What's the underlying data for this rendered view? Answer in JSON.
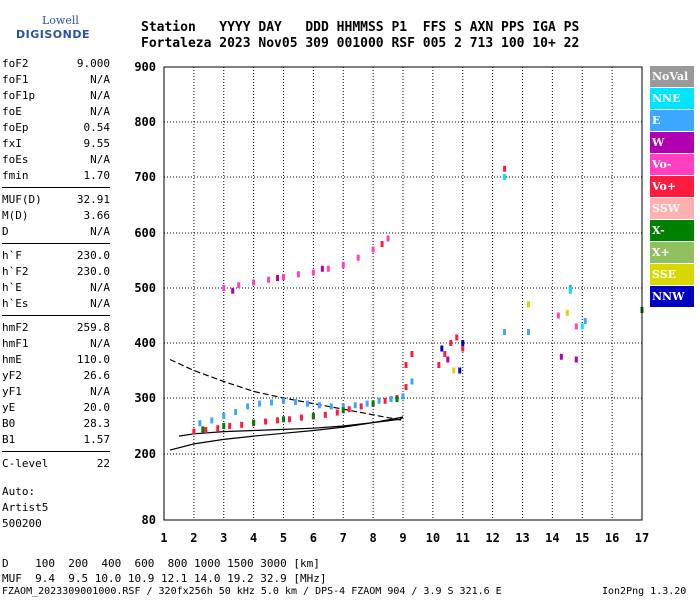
{
  "logo": {
    "line1": "Lowell",
    "line2": "DIGISONDE"
  },
  "header": {
    "line1": "Station   YYYY DAY   DDD HHMMSS P1  FFS S AXN PPS IGA PS",
    "line2": "Fortaleza 2023 Nov05 309 001000 RSF 005 2 713 100 10+ 22"
  },
  "params": [
    [
      {
        "k": "foF2",
        "v": "9.000"
      },
      {
        "k": "foF1",
        "v": "N/A"
      },
      {
        "k": "foF1p",
        "v": "N/A"
      },
      {
        "k": "foE",
        "v": "N/A"
      },
      {
        "k": "foEp",
        "v": "0.54"
      },
      {
        "k": "fxI",
        "v": "9.55"
      },
      {
        "k": "foEs",
        "v": "N/A"
      },
      {
        "k": "fmin",
        "v": "1.70"
      }
    ],
    [
      {
        "k": "MUF(D)",
        "v": "32.91"
      },
      {
        "k": "M(D)",
        "v": "3.66"
      },
      {
        "k": "D",
        "v": "N/A"
      }
    ],
    [
      {
        "k": "h`F",
        "v": "230.0"
      },
      {
        "k": "h`F2",
        "v": "230.0"
      },
      {
        "k": "h`E",
        "v": "N/A"
      },
      {
        "k": "h`Es",
        "v": "N/A"
      }
    ],
    [
      {
        "k": "hmF2",
        "v": "259.8"
      },
      {
        "k": "hmF1",
        "v": "N/A"
      },
      {
        "k": "hmE",
        "v": "110.0"
      },
      {
        "k": "yF2",
        "v": "26.6"
      },
      {
        "k": "yF1",
        "v": "N/A"
      },
      {
        "k": "yE",
        "v": "20.0"
      },
      {
        "k": "B0",
        "v": "28.3"
      },
      {
        "k": "B1",
        "v": "1.57"
      }
    ],
    [
      {
        "k": "C-level",
        "v": "22"
      }
    ]
  ],
  "auto": [
    "Auto:",
    "Artist5",
    "500200"
  ],
  "legend": [
    {
      "label": "NoVal",
      "color": "#999999"
    },
    {
      "label": "NNE",
      "color": "#00e5ff"
    },
    {
      "label": "E",
      "color": "#3ba7ff"
    },
    {
      "label": "W",
      "color": "#b000b0"
    },
    {
      "label": "Vo-",
      "color": "#ff40c0"
    },
    {
      "label": "Vo+",
      "color": "#ff1a40"
    },
    {
      "label": "SSW",
      "color": "#ffb0b0"
    },
    {
      "label": "X-",
      "color": "#008000"
    },
    {
      "label": "X+",
      "color": "#90c060"
    },
    {
      "label": "SSE",
      "color": "#d8d800"
    },
    {
      "label": "NNW",
      "color": "#0000c0"
    }
  ],
  "bottom": {
    "d_line": "D    100  200  400  600  800 1000 1500 3000 [km]",
    "muf_line": "MUF  9.4  9.5 10.0 10.9 12.1 14.0 19.2 32.9 [MHz]"
  },
  "footer": {
    "left": "FZAOM_2023309001000.RSF / 320fx256h 50 kHz 5.0 km / DPS-4 FZAOM 904 / 3.9 S 321.6 E",
    "right": "Ion2Png 1.3.20"
  },
  "chart_data": {
    "type": "scatter",
    "title": "",
    "xlabel": "",
    "ylabel": "",
    "xlim": [
      1,
      17
    ],
    "ylim": [
      80,
      900
    ],
    "x_ticks": [
      1,
      2,
      3,
      4,
      5,
      6,
      7,
      8,
      9,
      10,
      11,
      12,
      13,
      14,
      15,
      16,
      17
    ],
    "y_ticks": [
      80,
      200,
      300,
      400,
      500,
      600,
      700,
      800,
      900
    ],
    "grid": true,
    "legend_position": "right",
    "series": [
      {
        "name": "E",
        "color": "#3ba7ff",
        "points": [
          [
            2.2,
            255
          ],
          [
            2.6,
            260
          ],
          [
            3.0,
            268
          ],
          [
            3.4,
            275
          ],
          [
            3.8,
            285
          ],
          [
            4.2,
            290
          ],
          [
            4.6,
            292
          ],
          [
            5.0,
            295
          ],
          [
            5.4,
            293
          ],
          [
            5.8,
            290
          ],
          [
            6.2,
            287
          ],
          [
            6.6,
            285
          ],
          [
            7.0,
            285
          ],
          [
            7.4,
            287
          ],
          [
            7.8,
            290
          ],
          [
            8.2,
            295
          ],
          [
            8.6,
            298
          ],
          [
            9.0,
            303
          ],
          [
            9.3,
            330
          ],
          [
            12.4,
            420
          ],
          [
            13.2,
            420
          ],
          [
            14.6,
            500
          ],
          [
            15.1,
            440
          ]
        ]
      },
      {
        "name": "Vo+",
        "color": "#ff1a40",
        "points": [
          [
            2.0,
            240
          ],
          [
            2.4,
            243
          ],
          [
            2.8,
            246
          ],
          [
            3.2,
            250
          ],
          [
            3.6,
            252
          ],
          [
            4.0,
            255
          ],
          [
            4.4,
            258
          ],
          [
            4.8,
            260
          ],
          [
            5.2,
            262
          ],
          [
            5.6,
            265
          ],
          [
            6.0,
            267
          ],
          [
            6.4,
            270
          ],
          [
            6.8,
            274
          ],
          [
            7.2,
            280
          ],
          [
            7.6,
            285
          ],
          [
            8.0,
            290
          ],
          [
            8.4,
            295
          ],
          [
            8.8,
            300
          ],
          [
            9.1,
            320
          ],
          [
            9.1,
            360
          ],
          [
            9.3,
            380
          ],
          [
            10.2,
            360
          ],
          [
            10.4,
            380
          ],
          [
            10.6,
            400
          ],
          [
            10.8,
            410
          ],
          [
            11.0,
            390
          ],
          [
            12.4,
            715
          ],
          [
            8.3,
            580
          ]
        ]
      },
      {
        "name": "Vo-",
        "color": "#ff40c0",
        "points": [
          [
            3.0,
            500
          ],
          [
            3.5,
            505
          ],
          [
            4.0,
            510
          ],
          [
            4.5,
            515
          ],
          [
            5.0,
            520
          ],
          [
            5.5,
            525
          ],
          [
            6.0,
            528
          ],
          [
            6.5,
            535
          ],
          [
            7.0,
            542
          ],
          [
            7.5,
            555
          ],
          [
            8.0,
            570
          ],
          [
            8.5,
            590
          ],
          [
            14.2,
            450
          ],
          [
            14.8,
            430
          ]
        ]
      },
      {
        "name": "X-",
        "color": "#008000",
        "points": [
          [
            2.3,
            244
          ],
          [
            3.0,
            250
          ],
          [
            4.0,
            256
          ],
          [
            5.0,
            262
          ],
          [
            6.0,
            268
          ],
          [
            7.0,
            278
          ],
          [
            8.0,
            290
          ],
          [
            8.8,
            298
          ],
          [
            17.0,
            460
          ]
        ]
      },
      {
        "name": "W",
        "color": "#b000b0",
        "points": [
          [
            3.3,
            495
          ],
          [
            4.8,
            518
          ],
          [
            6.3,
            535
          ],
          [
            10.5,
            370
          ],
          [
            14.3,
            375
          ],
          [
            14.8,
            370
          ]
        ]
      },
      {
        "name": "NNE",
        "color": "#00e5ff",
        "points": [
          [
            12.4,
            700
          ],
          [
            14.6,
            495
          ],
          [
            15.0,
            430
          ]
        ]
      },
      {
        "name": "SSE",
        "color": "#d8d800",
        "points": [
          [
            13.2,
            470
          ],
          [
            14.5,
            455
          ],
          [
            10.7,
            350
          ]
        ]
      },
      {
        "name": "NNW",
        "color": "#0000c0",
        "points": [
          [
            10.3,
            390
          ],
          [
            11.0,
            400
          ],
          [
            10.9,
            350
          ]
        ]
      }
    ],
    "curves": [
      {
        "style": "solid",
        "points": [
          [
            1.2,
            207
          ],
          [
            2.0,
            218
          ],
          [
            3.0,
            226
          ],
          [
            4.0,
            232
          ],
          [
            5.0,
            237
          ],
          [
            6.0,
            242
          ],
          [
            7.0,
            248
          ],
          [
            8.0,
            256
          ],
          [
            8.6,
            262
          ],
          [
            9.0,
            266
          ],
          [
            8.9,
            262
          ],
          [
            8.0,
            256
          ],
          [
            7.0,
            250
          ],
          [
            6.0,
            246
          ],
          [
            5.0,
            244
          ],
          [
            4.0,
            242
          ],
          [
            3.0,
            240
          ],
          [
            2.0,
            236
          ],
          [
            1.5,
            232
          ]
        ]
      },
      {
        "style": "dashed",
        "points": [
          [
            1.2,
            370
          ],
          [
            2.0,
            350
          ],
          [
            3.0,
            330
          ],
          [
            4.0,
            312
          ],
          [
            5.0,
            300
          ],
          [
            6.0,
            290
          ],
          [
            7.0,
            280
          ],
          [
            8.0,
            270
          ],
          [
            8.6,
            264
          ],
          [
            9.0,
            260
          ]
        ]
      }
    ]
  }
}
